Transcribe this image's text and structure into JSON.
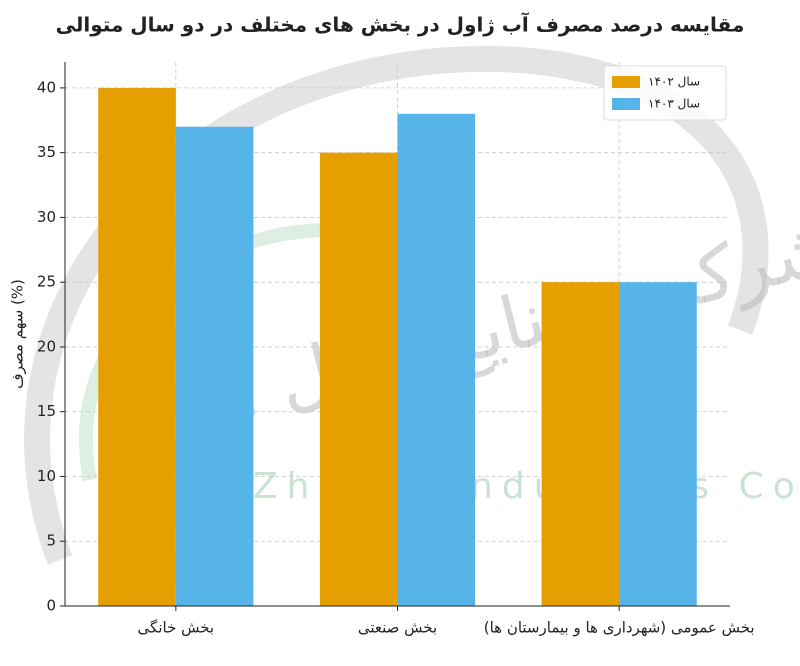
{
  "chart_data": {
    "type": "bar",
    "title": "مقایسه درصد مصرف آب ژاول در بخش های مختلف در دو سال متوالی",
    "ylabel": "سهم مصرف (%)",
    "categories": [
      "بخش خانگی",
      "بخش صنعتی",
      "بخش عمومی (شهرداری ها و بیمارستان ها)"
    ],
    "series": [
      {
        "name": "سال ۱۴۰۲",
        "color": "#e69f00",
        "values": [
          40,
          35,
          25
        ]
      },
      {
        "name": "سال ۱۴۰۳",
        "color": "#56b4e9",
        "values": [
          37,
          38,
          25
        ]
      }
    ],
    "ylim": [
      0,
      42
    ],
    "yticks": [
      0,
      5,
      10,
      15,
      20,
      25,
      30,
      35,
      40
    ],
    "grid": true,
    "legend": "upper right",
    "watermark": {
      "fa": "شرکت صنایع ژاول ایران",
      "en": "Iran Zhavel Industries Co"
    }
  }
}
